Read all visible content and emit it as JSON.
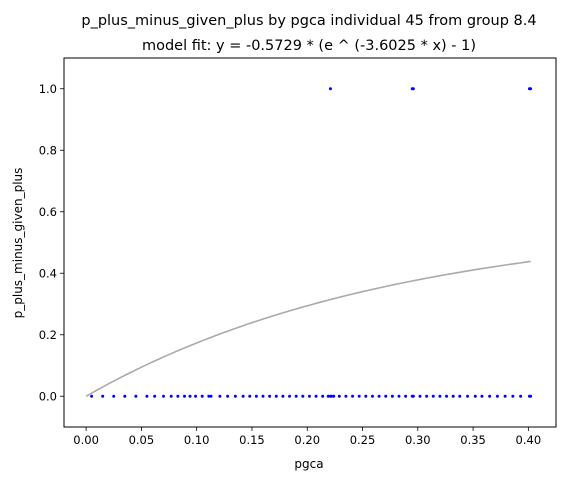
{
  "chart_data": {
    "type": "scatter",
    "title": "p_plus_minus_given_plus by pgca individual 45 from group 8.4",
    "subtitle": "model fit: y = -0.5729 * (e ^ (-3.6025 * x) - 1)",
    "xlabel": "pgca",
    "ylabel": "p_plus_minus_given_plus",
    "xlim": [
      -0.02,
      0.425
    ],
    "ylim": [
      -0.1,
      1.1
    ],
    "xticks": [
      {
        "value": 0.0,
        "label": "0.00"
      },
      {
        "value": 0.05,
        "label": "0.05"
      },
      {
        "value": 0.1,
        "label": "0.10"
      },
      {
        "value": 0.15,
        "label": "0.15"
      },
      {
        "value": 0.2,
        "label": "0.20"
      },
      {
        "value": 0.25,
        "label": "0.25"
      },
      {
        "value": 0.3,
        "label": "0.30"
      },
      {
        "value": 0.35,
        "label": "0.35"
      },
      {
        "value": 0.4,
        "label": "0.40"
      }
    ],
    "yticks": [
      {
        "value": 0.0,
        "label": "0.0"
      },
      {
        "value": 0.2,
        "label": "0.2"
      },
      {
        "value": 0.4,
        "label": "0.4"
      },
      {
        "value": 0.6,
        "label": "0.6"
      },
      {
        "value": 0.8,
        "label": "0.8"
      },
      {
        "value": 1.0,
        "label": "1.0"
      }
    ],
    "grid": false,
    "point_color": "#0000ff",
    "fit_color": "#aaaaaa",
    "fit": {
      "a": -0.5729,
      "b": -3.6025,
      "x_range": [
        0.0,
        0.402
      ]
    },
    "series": [
      {
        "points": [
          [
            0.005,
            0
          ],
          [
            0.015,
            0
          ],
          [
            0.025,
            0
          ],
          [
            0.035,
            0
          ],
          [
            0.045,
            0
          ],
          [
            0.055,
            0
          ],
          [
            0.062,
            0
          ],
          [
            0.07,
            0
          ],
          [
            0.077,
            0
          ],
          [
            0.083,
            0
          ],
          [
            0.089,
            0
          ],
          [
            0.094,
            0
          ],
          [
            0.099,
            0
          ],
          [
            0.105,
            0
          ],
          [
            0.111,
            0
          ],
          [
            0.113,
            0
          ],
          [
            0.121,
            0
          ],
          [
            0.128,
            0
          ],
          [
            0.135,
            0
          ],
          [
            0.142,
            0
          ],
          [
            0.148,
            0
          ],
          [
            0.154,
            0
          ],
          [
            0.16,
            0
          ],
          [
            0.166,
            0
          ],
          [
            0.172,
            0
          ],
          [
            0.178,
            0
          ],
          [
            0.184,
            0
          ],
          [
            0.19,
            0
          ],
          [
            0.196,
            0
          ],
          [
            0.202,
            0
          ],
          [
            0.208,
            0
          ],
          [
            0.214,
            0
          ],
          [
            0.219,
            0
          ],
          [
            0.221,
            0
          ],
          [
            0.222,
            0
          ],
          [
            0.224,
            0
          ],
          [
            0.229,
            0
          ],
          [
            0.235,
            0
          ],
          [
            0.241,
            0
          ],
          [
            0.247,
            0
          ],
          [
            0.253,
            0
          ],
          [
            0.259,
            0
          ],
          [
            0.265,
            0
          ],
          [
            0.271,
            0
          ],
          [
            0.277,
            0
          ],
          [
            0.283,
            0
          ],
          [
            0.289,
            0
          ],
          [
            0.295,
            0
          ],
          [
            0.296,
            0
          ],
          [
            0.302,
            0
          ],
          [
            0.308,
            0
          ],
          [
            0.314,
            0
          ],
          [
            0.32,
            0
          ],
          [
            0.326,
            0
          ],
          [
            0.332,
            0
          ],
          [
            0.338,
            0
          ],
          [
            0.345,
            0
          ],
          [
            0.352,
            0
          ],
          [
            0.358,
            0
          ],
          [
            0.365,
            0
          ],
          [
            0.372,
            0
          ],
          [
            0.379,
            0
          ],
          [
            0.386,
            0
          ],
          [
            0.393,
            0
          ],
          [
            0.401,
            0
          ],
          [
            0.402,
            0
          ],
          [
            0.221,
            1
          ],
          [
            0.295,
            1
          ],
          [
            0.296,
            1
          ],
          [
            0.401,
            1
          ],
          [
            0.402,
            1
          ]
        ]
      }
    ]
  }
}
